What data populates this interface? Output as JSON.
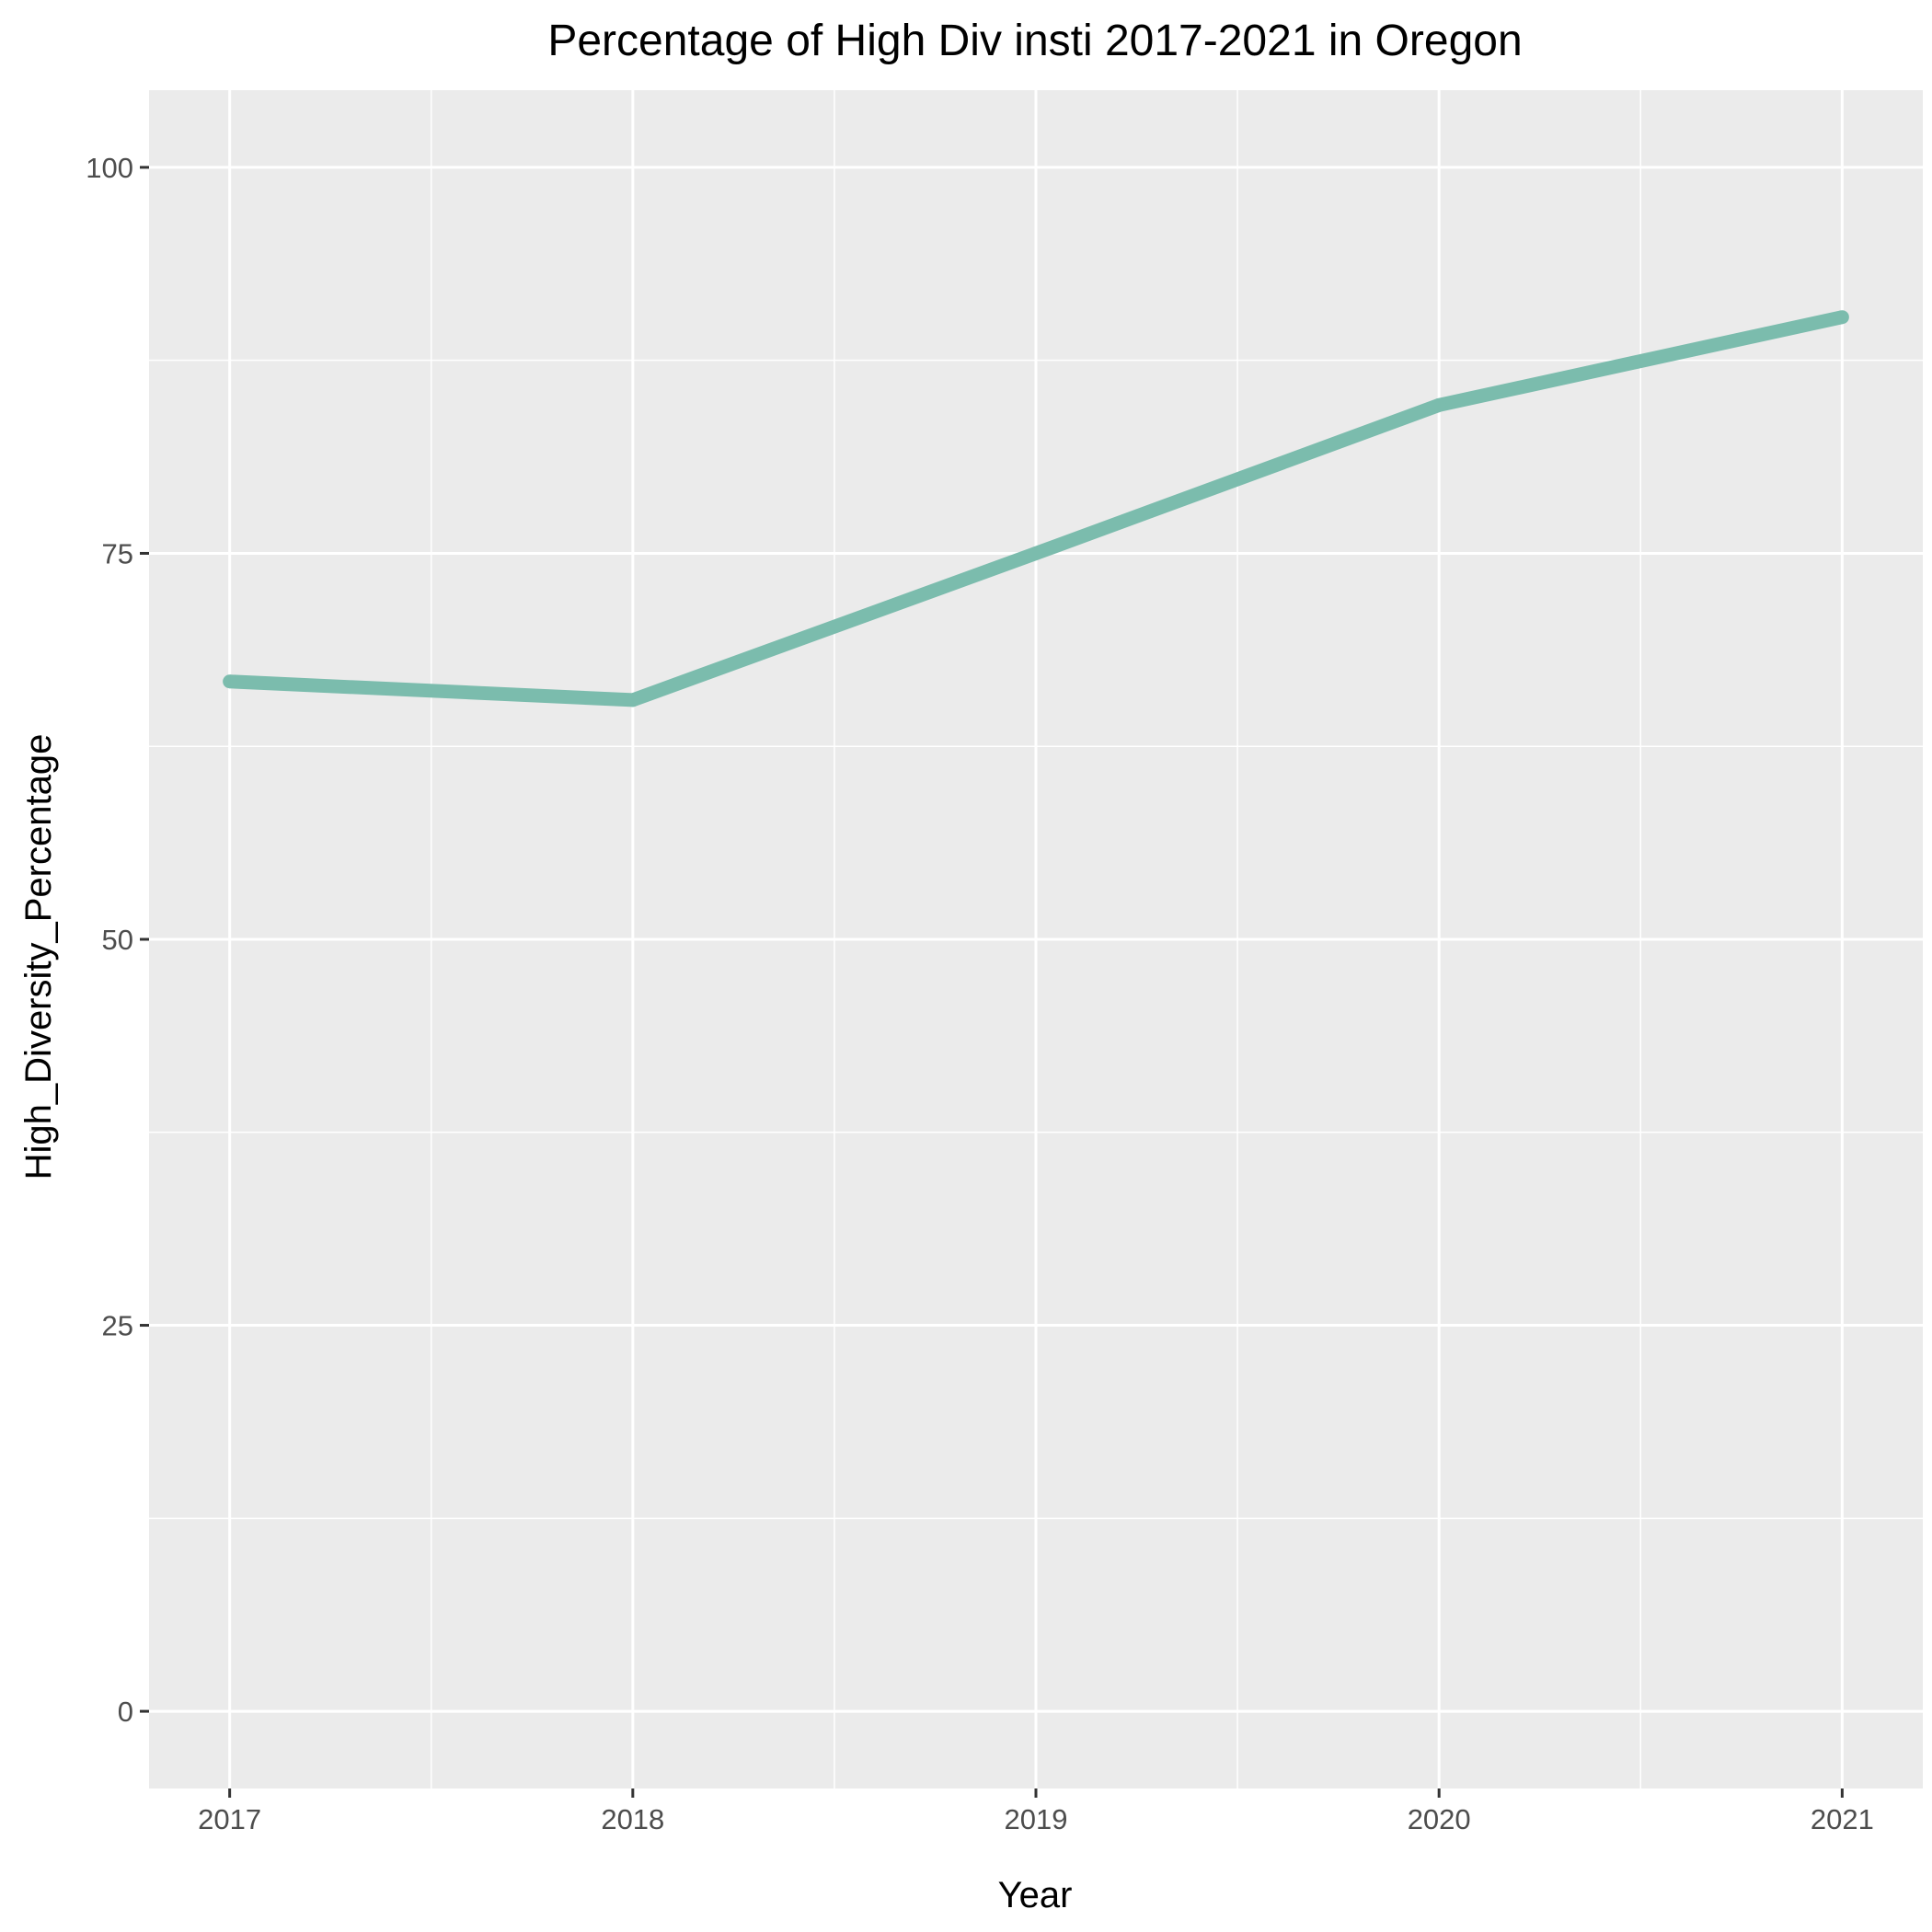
{
  "chart_data": {
    "type": "line",
    "title": "Percentage of High Div insti 2017-2021 in Oregon",
    "xlabel": "Year",
    "ylabel": "High_Diversity_Percentage",
    "x": [
      2017,
      2018,
      2019,
      2020,
      2021
    ],
    "x_tick_labels": [
      "2017",
      "2018",
      "2019",
      "2020",
      "2021"
    ],
    "y_ticks": [
      0,
      25,
      50,
      75,
      100
    ],
    "y_tick_labels": [
      "0",
      "25",
      "50",
      "75",
      "100"
    ],
    "xlim": [
      2016.8,
      2021.2
    ],
    "ylim": [
      -5,
      105
    ],
    "grid": true,
    "series": [
      {
        "values": [
          66.7,
          65.5,
          75.0,
          84.6,
          90.3
        ],
        "color": "#7bbcad"
      }
    ],
    "colors": {
      "panel_background": "#ebebeb",
      "grid_line": "#ffffff",
      "tick_mark": "#333333"
    }
  }
}
